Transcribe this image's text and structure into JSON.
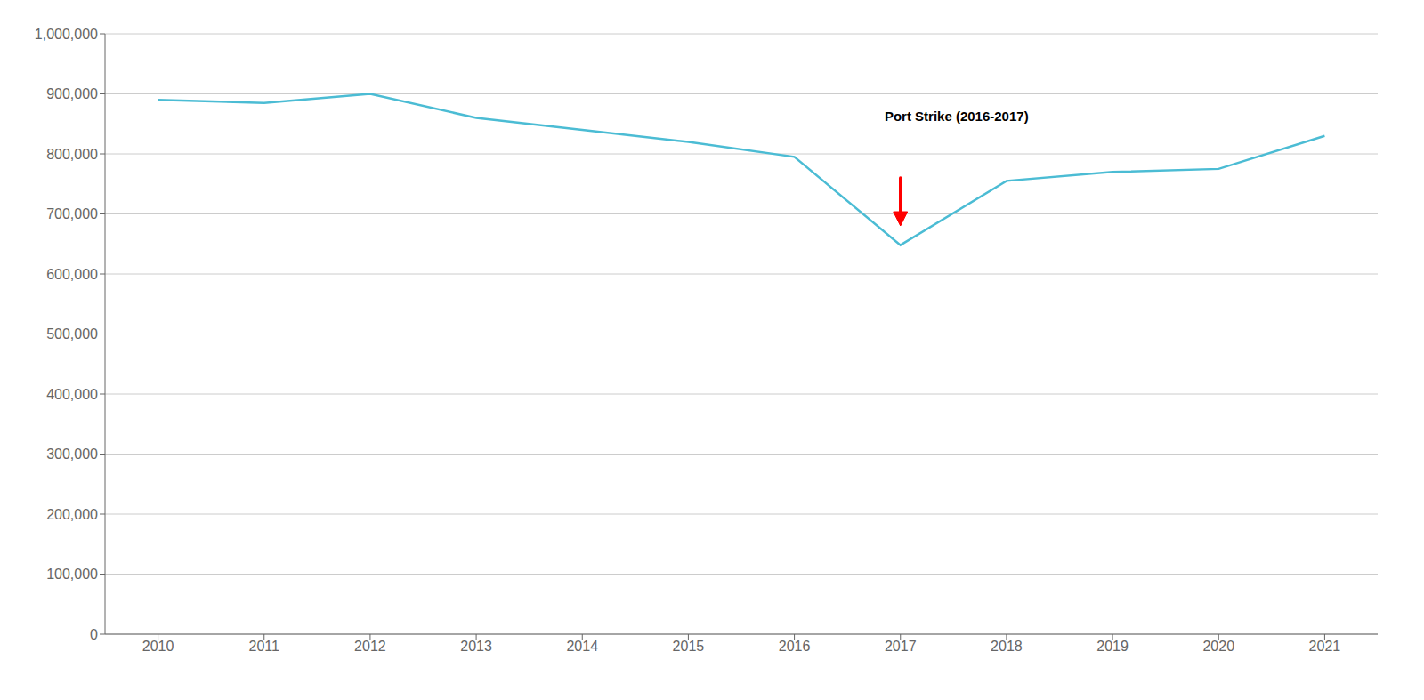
{
  "chart_data": {
    "type": "line",
    "x": [
      2010,
      2011,
      2012,
      2013,
      2014,
      2015,
      2016,
      2017,
      2018,
      2019,
      2020,
      2021
    ],
    "values": [
      890000,
      885000,
      900000,
      860000,
      840000,
      820000,
      795000,
      648000,
      755000,
      770000,
      775000,
      830000
    ],
    "color": "#4BBCD4",
    "xlim": [
      2009.5,
      2021.5
    ],
    "xticks": [
      2010,
      2011,
      2012,
      2013,
      2014,
      2015,
      2016,
      2017,
      2018,
      2019,
      2020,
      2021
    ],
    "ylim": [
      0,
      1000000
    ],
    "yticks": [
      0,
      {
        "value": 100000,
        "label": "100,000"
      },
      {
        "value": 200000,
        "label": "200,000"
      },
      {
        "value": 300000,
        "label": "300,000"
      },
      {
        "value": 400000,
        "label": "400,000"
      },
      {
        "value": 500000,
        "label": "500,000"
      },
      {
        "value": 600000,
        "label": "600,000"
      },
      {
        "value": 700000,
        "label": "700,000"
      },
      {
        "value": 800000,
        "label": "800,000"
      },
      {
        "value": 900000,
        "label": "900,000"
      },
      {
        "value": 1000000,
        "label": "1,000,000"
      }
    ],
    "grid": true,
    "annotations": [
      {
        "text": "Port Strike (2016-2017)",
        "x": 2016.85,
        "y": 855000,
        "arrow": {
          "x": 2017.0,
          "y_start": 760000,
          "y_end": 680000,
          "color": "#FF0000"
        }
      }
    ]
  }
}
